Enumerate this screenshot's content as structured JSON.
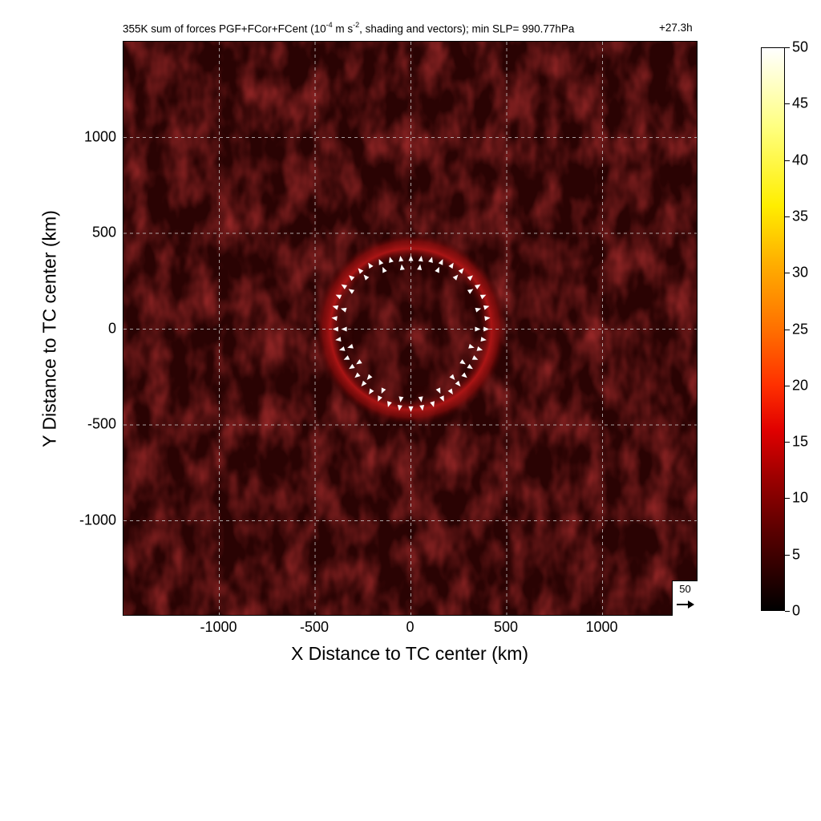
{
  "title": {
    "main_prefix": "355K sum of forces PGF+FCor+FCent (10",
    "main_exp": "-4",
    "main_mid": " m s",
    "main_exp2": "-2",
    "main_suffix": ", shading and vectors); min SLP= 990.77hPa",
    "time": "+27.3h"
  },
  "chart_data": {
    "type": "heatmap",
    "xlabel": "X Distance to TC center (km)",
    "ylabel": "Y Distance to TC center (km)",
    "xlim": [
      -1500,
      1500
    ],
    "ylim": [
      -1500,
      1500
    ],
    "x_ticks": [
      -1000,
      -500,
      0,
      500,
      1000
    ],
    "y_ticks": [
      1000,
      500,
      0,
      -500,
      -1000
    ],
    "x_tick_labels": [
      "-1000",
      "-500",
      "0",
      "500",
      "1000"
    ],
    "y_tick_labels": [
      "1000",
      "500",
      "0",
      "-500",
      "-1000"
    ],
    "grid": true,
    "colorbar": {
      "min": 0,
      "max": 50,
      "ticks": [
        "50",
        "45",
        "40",
        "35",
        "30",
        "25",
        "20",
        "15",
        "10",
        "5",
        "0"
      ],
      "colormap": "hot"
    },
    "ring": {
      "center_km": [
        0,
        0
      ],
      "radius_km": 400,
      "peak_value": 12
    },
    "reference_vector": {
      "label": "50",
      "value": 50
    },
    "vector_color": "#ffffff"
  },
  "colors": {
    "background": "#1a0000",
    "ring": "#a01010",
    "grid": "#cccccc"
  }
}
